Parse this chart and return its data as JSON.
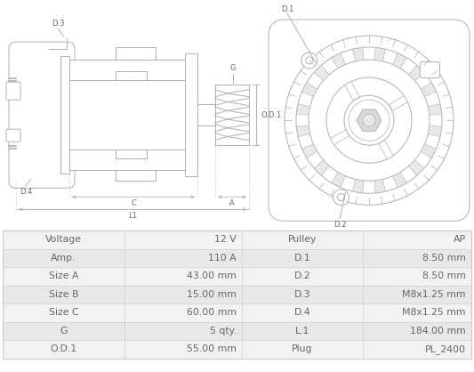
{
  "table_data": {
    "col1_labels": [
      "Voltage",
      "Amp.",
      "Size A",
      "Size B",
      "Size C",
      "G",
      "O.D.1"
    ],
    "col1_values": [
      "12 V",
      "110 A",
      "43.00 mm",
      "15.00 mm",
      "60.00 mm",
      "5 qty.",
      "55.00 mm"
    ],
    "col2_labels": [
      "Pulley",
      "D.1",
      "D.2",
      "D.3",
      "D.4",
      "L.1",
      "Plug"
    ],
    "col2_values": [
      "AP",
      "8.50 mm",
      "8.50 mm",
      "M8x1.25 mm",
      "M8x1.25 mm",
      "184.00 mm",
      "PL_2400"
    ]
  },
  "bg_color": "#ffffff",
  "table_row_bg_odd": "#f2f2f2",
  "table_row_bg_even": "#e8e8e8",
  "table_border_color": "#cccccc",
  "text_color": "#666666",
  "line_color": "#b0b0b0",
  "label_color": "#666666"
}
